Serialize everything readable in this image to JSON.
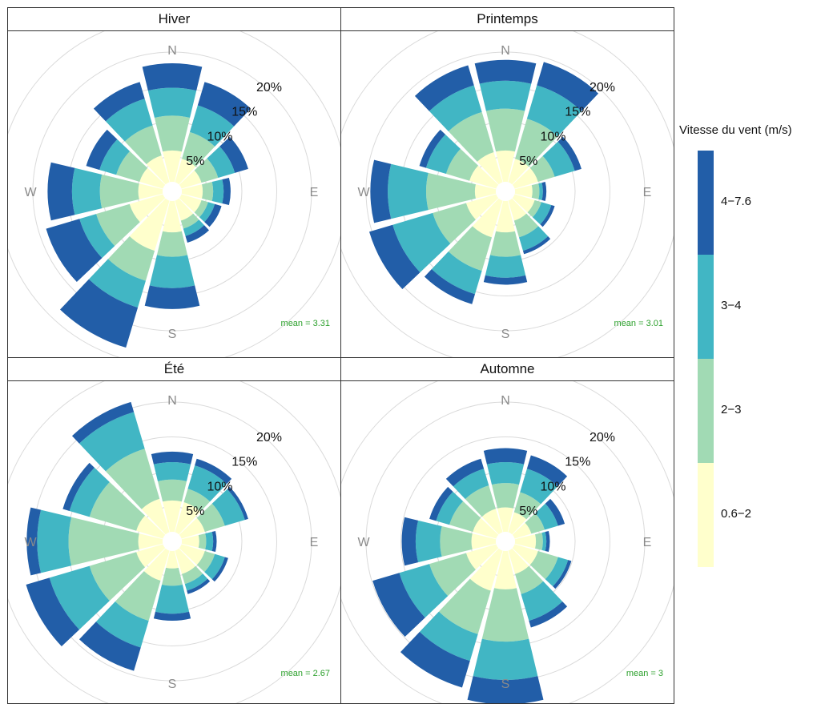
{
  "chart_data": {
    "type": "polar-bar",
    "grid": true,
    "radial_ticks": [
      "5%",
      "10%",
      "15%",
      "20%"
    ],
    "radial_max": 20,
    "directions": [
      "N",
      "E",
      "S",
      "W"
    ],
    "sector_angles": [
      0,
      30,
      60,
      90,
      120,
      150,
      180,
      210,
      240,
      270,
      300,
      330
    ],
    "legend": {
      "title": "Vitesse du vent (m/s)",
      "placement": "right",
      "bins": [
        {
          "label": "0.6−2",
          "color": "#ffffcc"
        },
        {
          "label": "2−3",
          "color": "#a1dab4"
        },
        {
          "label": "3−4",
          "color": "#41b6c4"
        },
        {
          "label": "4−7.6",
          "color": "#225ea8"
        }
      ]
    },
    "panels": [
      {
        "title": "Hiver",
        "mean_label": "mean = 3.31",
        "cumulative": [
          [
            4.5,
            9.5,
            13.5,
            17.0
          ],
          [
            3.5,
            7.5,
            11.5,
            15.0
          ],
          [
            3.0,
            5.5,
            8.0,
            10.0
          ],
          [
            3.0,
            4.5,
            6.0,
            7.0
          ],
          [
            3.0,
            4.0,
            5.0,
            6.0
          ],
          [
            3.0,
            4.2,
            5.3,
            6.3
          ],
          [
            4.5,
            8.0,
            12.5,
            15.5
          ],
          [
            7.5,
            12.0,
            16.0,
            22.0
          ],
          [
            5.0,
            10.0,
            12.5,
            17.5
          ],
          [
            3.5,
            9.0,
            13.0,
            16.5
          ],
          [
            3.5,
            7.0,
            9.5,
            11.5
          ],
          [
            4.0,
            8.5,
            12.5,
            15.0
          ]
        ]
      },
      {
        "title": "Printemps",
        "mean_label": "mean = 3.01",
        "cumulative": [
          [
            4.5,
            10.5,
            14.5,
            17.5
          ],
          [
            3.5,
            9.5,
            14.5,
            18.0
          ],
          [
            3.5,
            6.0,
            9.0,
            10.0
          ],
          [
            2.5,
            3.5,
            4.0,
            4.5
          ],
          [
            3.0,
            4.0,
            5.5,
            6.0
          ],
          [
            3.0,
            5.5,
            7.5,
            8.0
          ],
          [
            4.5,
            8.0,
            11.0,
            12.0
          ],
          [
            5.5,
            10.5,
            14.0,
            15.5
          ],
          [
            4.5,
            9.5,
            15.5,
            19.0
          ],
          [
            3.0,
            10.0,
            15.5,
            18.0
          ],
          [
            4.0,
            7.5,
            10.5,
            11.5
          ],
          [
            4.5,
            10.5,
            14.5,
            17.5
          ]
        ]
      },
      {
        "title": "Été",
        "mean_label": "mean = 2.67",
        "cumulative": [
          [
            4.5,
            7.5,
            10.0,
            11.5
          ],
          [
            4.5,
            6.5,
            10.0,
            11.0
          ],
          [
            3.5,
            6.5,
            9.5,
            10.0
          ],
          [
            2.5,
            3.5,
            4.5,
            5.0
          ],
          [
            3.5,
            5.0,
            6.5,
            7.0
          ],
          [
            3.5,
            5.0,
            6.0,
            6.5
          ],
          [
            2.5,
            5.0,
            9.0,
            10.0
          ],
          [
            4.5,
            10.5,
            14.5,
            18.0
          ],
          [
            4.0,
            11.0,
            17.0,
            20.5
          ],
          [
            3.5,
            13.5,
            18.0,
            19.5
          ],
          [
            4.0,
            11.0,
            14.0,
            15.0
          ],
          [
            5.0,
            12.5,
            18.0,
            19.5
          ]
        ]
      },
      {
        "title": "Automne",
        "mean_label": "mean = 3",
        "cumulative": [
          [
            3.5,
            7.0,
            10.0,
            12.0
          ],
          [
            3.0,
            6.0,
            9.5,
            11.5
          ],
          [
            2.5,
            4.5,
            6.5,
            7.5
          ],
          [
            3.0,
            4.0,
            4.5,
            5.0
          ],
          [
            3.5,
            6.5,
            8.0,
            8.5
          ],
          [
            3.5,
            6.5,
            10.5,
            11.5
          ],
          [
            5.5,
            13.0,
            18.5,
            22.0
          ],
          [
            6.0,
            12.5,
            16.5,
            20.5
          ],
          [
            4.5,
            10.0,
            14.5,
            18.5
          ],
          [
            3.5,
            8.0,
            11.5,
            13.5
          ],
          [
            3.5,
            7.0,
            9.0,
            10.0
          ],
          [
            3.5,
            7.0,
            9.5,
            11.0
          ]
        ]
      }
    ]
  }
}
